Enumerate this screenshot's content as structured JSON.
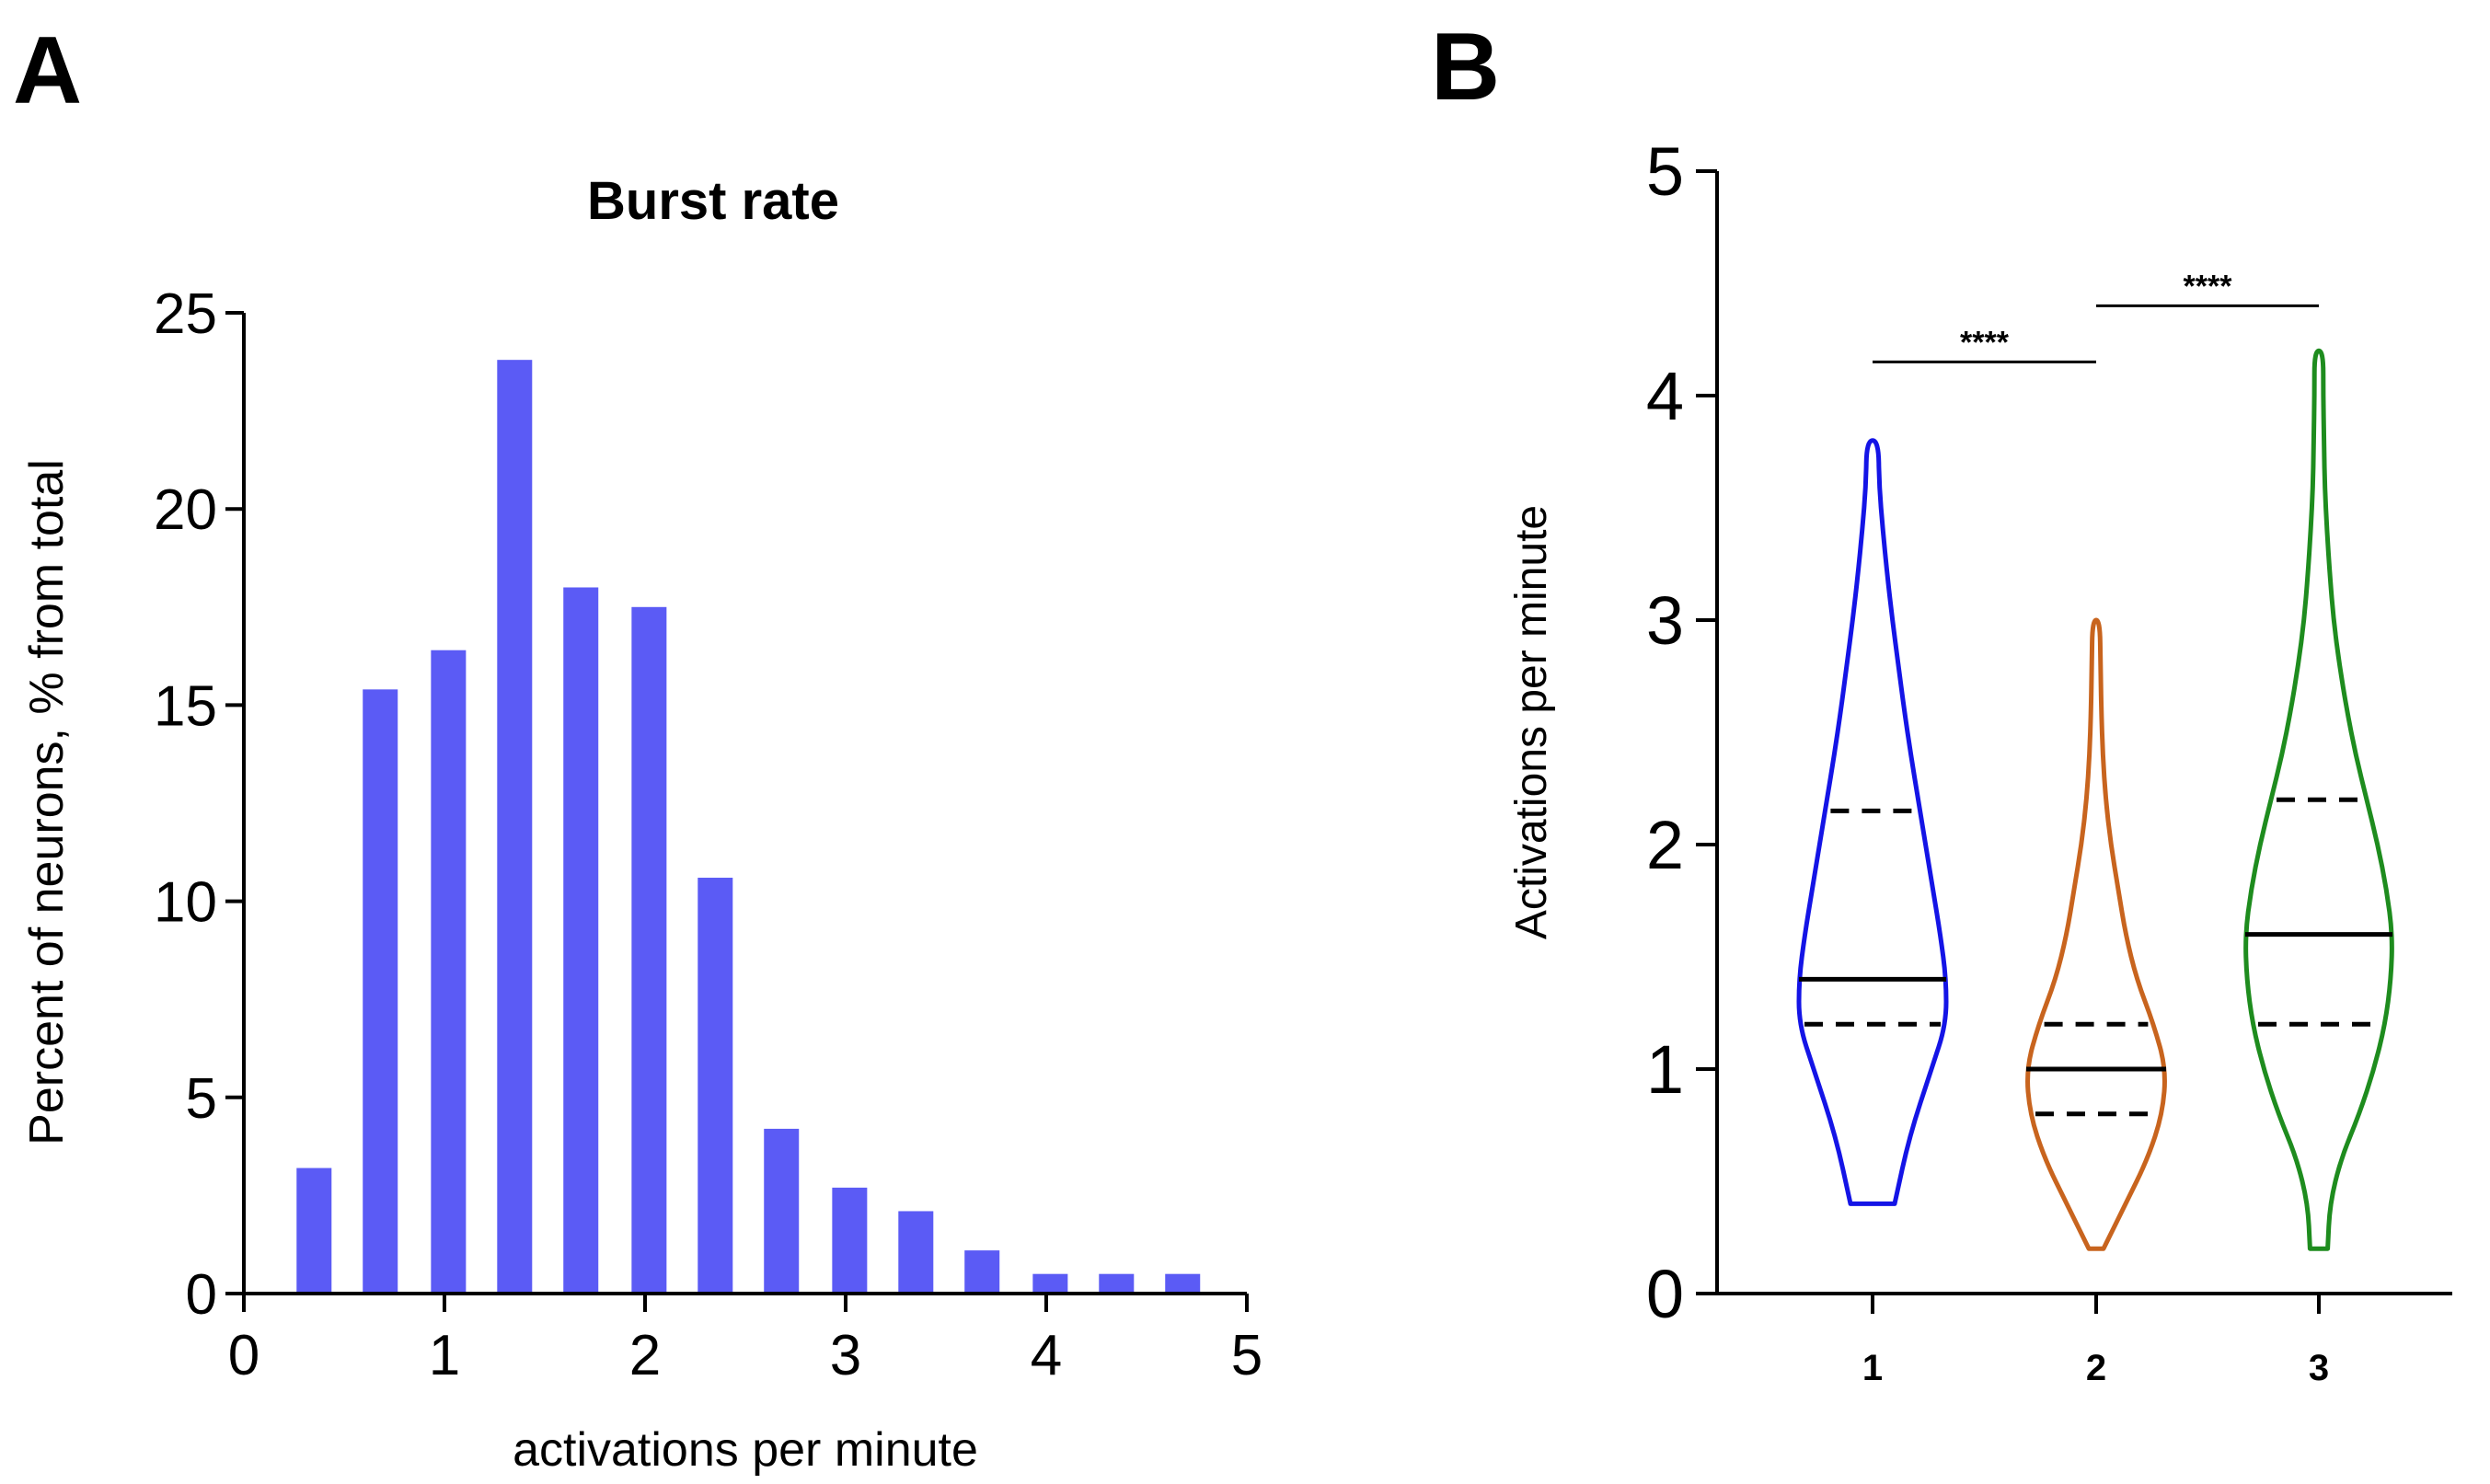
{
  "panels": {
    "a_label": "A",
    "b_label": "B"
  },
  "colors": {
    "bar": "#5b5bf5",
    "violin_1": "#1414e6",
    "violin_2": "#c8641e",
    "violin_3": "#1e8c1e",
    "line": "#000000"
  },
  "chart_data": [
    {
      "type": "bar",
      "title": "Burst rate",
      "xlabel": "activations per minute",
      "ylabel": "Percent of neurons, % from total",
      "xlim": [
        0,
        5
      ],
      "ylim": [
        0,
        25
      ],
      "xticks": [
        "0",
        "1",
        "2",
        "3",
        "4",
        "5"
      ],
      "yticks": [
        "0",
        "5",
        "10",
        "15",
        "20",
        "25"
      ],
      "bin_centers": [
        0.35,
        0.68,
        1.02,
        1.35,
        1.68,
        2.02,
        2.35,
        2.68,
        3.02,
        3.35,
        3.68,
        4.02,
        4.35,
        4.68
      ],
      "values": [
        3.2,
        15.4,
        16.4,
        23.8,
        18.0,
        17.5,
        10.6,
        4.2,
        2.7,
        2.1,
        1.1,
        0.5,
        0.5,
        0.5
      ]
    },
    {
      "type": "violin",
      "ylabel": "Activations per minute",
      "ylim": [
        0,
        5
      ],
      "yticks": [
        "0",
        "1",
        "2",
        "3",
        "4",
        "5"
      ],
      "categories": [
        "1",
        "2",
        "3"
      ],
      "series": [
        {
          "name": "1",
          "median": 1.4,
          "q1": 1.2,
          "q3": 2.15,
          "min": 0.4,
          "max": 3.8,
          "profile_y": [
            0.4,
            0.7,
            1.0,
            1.2,
            1.4,
            1.6,
            1.8,
            2.0,
            2.2,
            2.4,
            2.6,
            2.8,
            3.0,
            3.2,
            3.4,
            3.6,
            3.8
          ],
          "profile_w": [
            0.3,
            0.5,
            0.8,
            1.0,
            1.0,
            0.92,
            0.82,
            0.72,
            0.62,
            0.52,
            0.43,
            0.35,
            0.27,
            0.2,
            0.14,
            0.09,
            0.08
          ]
        },
        {
          "name": "2",
          "median": 1.0,
          "q1": 0.8,
          "q3": 1.2,
          "min": 0.2,
          "max": 3.0,
          "profile_y": [
            0.2,
            0.4,
            0.6,
            0.8,
            1.0,
            1.2,
            1.4,
            1.6,
            1.8,
            2.0,
            2.2,
            2.4,
            2.6,
            2.8,
            3.0
          ],
          "profile_w": [
            0.1,
            0.4,
            0.7,
            0.9,
            0.95,
            0.78,
            0.55,
            0.4,
            0.3,
            0.2,
            0.13,
            0.09,
            0.07,
            0.06,
            0.05
          ]
        },
        {
          "name": "3",
          "median": 1.6,
          "q1": 1.2,
          "q3": 2.2,
          "min": 0.2,
          "max": 4.2,
          "profile_y": [
            0.2,
            0.4,
            0.6,
            0.8,
            1.0,
            1.2,
            1.4,
            1.6,
            1.8,
            2.0,
            2.2,
            2.4,
            2.6,
            2.8,
            3.0,
            3.2,
            3.4,
            3.6,
            3.8,
            4.0,
            4.2
          ],
          "profile_w": [
            0.12,
            0.15,
            0.3,
            0.55,
            0.75,
            0.9,
            0.98,
            1.0,
            0.92,
            0.8,
            0.65,
            0.5,
            0.38,
            0.28,
            0.2,
            0.15,
            0.11,
            0.08,
            0.07,
            0.06,
            0.06
          ]
        }
      ],
      "comparisons": [
        {
          "pair": [
            "1",
            "2"
          ],
          "label": "****",
          "y": 4.15
        },
        {
          "pair": [
            "2",
            "3"
          ],
          "label": "****",
          "y": 4.4
        }
      ]
    }
  ]
}
